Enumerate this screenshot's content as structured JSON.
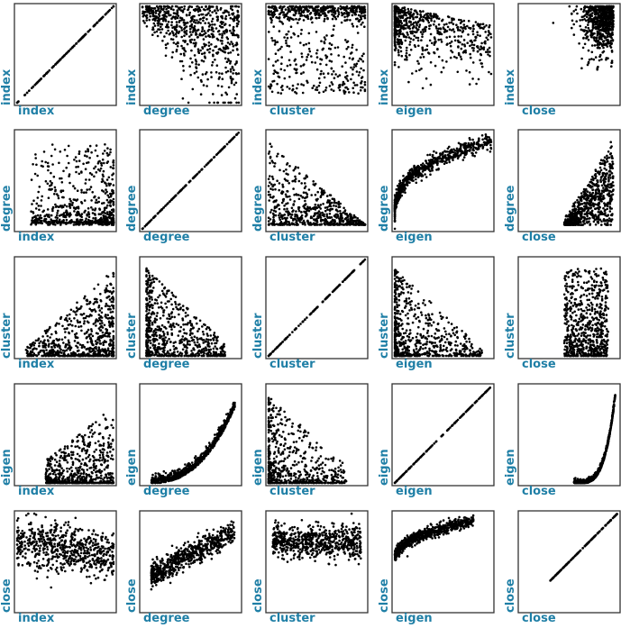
{
  "chart_data": {
    "type": "scatter",
    "variables": [
      "index",
      "degree",
      "cluster",
      "eigen",
      "close"
    ],
    "label_color": "#1f7fa6",
    "point_color": "#000000",
    "grid": false,
    "legend": "none",
    "pairs": [
      {
        "x": "index",
        "y": "index",
        "pattern": "identity"
      },
      {
        "x": "degree",
        "y": "index",
        "pattern": "wide cloud, dense toward high index"
      },
      {
        "x": "cluster",
        "y": "index",
        "pattern": "dense band at top, sparse below"
      },
      {
        "x": "eigen",
        "y": "index",
        "pattern": "cloud concentrated at low eigen"
      },
      {
        "x": "close",
        "y": "index",
        "pattern": "dense cluster at high close and high index"
      },
      {
        "x": "index",
        "y": "degree",
        "pattern": "cloud concentrated at high index, low degree"
      },
      {
        "x": "degree",
        "y": "degree",
        "pattern": "identity"
      },
      {
        "x": "cluster",
        "y": "degree",
        "pattern": "decreasing, triangular"
      },
      {
        "x": "eigen",
        "y": "degree",
        "pattern": "increasing, concave"
      },
      {
        "x": "close",
        "y": "degree",
        "pattern": "increasing, steep"
      },
      {
        "x": "index",
        "y": "cluster",
        "pattern": "rising cloud toward high index"
      },
      {
        "x": "degree",
        "y": "cluster",
        "pattern": "decreasing from high cluster"
      },
      {
        "x": "cluster",
        "y": "cluster",
        "pattern": "identity"
      },
      {
        "x": "eigen",
        "y": "cluster",
        "pattern": "decreasing, concentrated at low eigen"
      },
      {
        "x": "close",
        "y": "cluster",
        "pattern": "dense band at high close"
      },
      {
        "x": "index",
        "y": "eigen",
        "pattern": "low values, spread rising toward high index"
      },
      {
        "x": "degree",
        "y": "eigen",
        "pattern": "increasing, convex"
      },
      {
        "x": "cluster",
        "y": "eigen",
        "pattern": "decreasing, concentrated at low cluster"
      },
      {
        "x": "eigen",
        "y": "eigen",
        "pattern": "identity"
      },
      {
        "x": "close",
        "y": "eigen",
        "pattern": "exponential increase"
      },
      {
        "x": "index",
        "y": "close",
        "pattern": "cloud, decreasing at high index"
      },
      {
        "x": "degree",
        "y": "close",
        "pattern": "increasing"
      },
      {
        "x": "cluster",
        "y": "close",
        "pattern": "band at mid-high close"
      },
      {
        "x": "eigen",
        "y": "close",
        "pattern": "increasing, concave"
      },
      {
        "x": "close",
        "y": "close",
        "pattern": "identity"
      }
    ]
  }
}
